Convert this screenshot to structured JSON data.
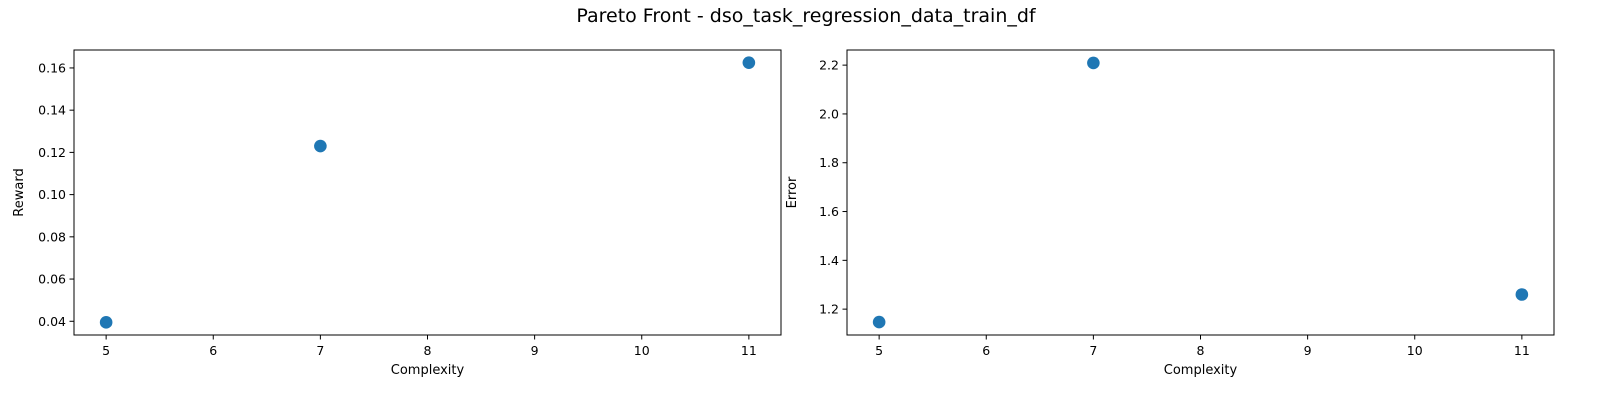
{
  "figure": {
    "title": "Pareto Front - dso_task_regression_data_train_df"
  },
  "chart_data": [
    {
      "type": "scatter",
      "xlabel": "Complexity",
      "ylabel": "Reward",
      "xlim": [
        4.7,
        11.3
      ],
      "ylim": [
        0.0335,
        0.1685
      ],
      "xticks": [
        5,
        6,
        7,
        8,
        9,
        10,
        11
      ],
      "xtick_labels": [
        "5",
        "6",
        "7",
        "8",
        "9",
        "10",
        "11"
      ],
      "yticks": [
        0.04,
        0.06,
        0.08,
        0.1,
        0.12,
        0.14,
        0.16
      ],
      "ytick_labels": [
        "0.04",
        "0.06",
        "0.08",
        "0.10",
        "0.12",
        "0.14",
        "0.16"
      ],
      "grid": false,
      "color": "#1f77b4",
      "points": [
        {
          "x": 5,
          "y": 0.0395
        },
        {
          "x": 7,
          "y": 0.123
        },
        {
          "x": 11,
          "y": 0.1625
        }
      ]
    },
    {
      "type": "scatter",
      "xlabel": "Complexity",
      "ylabel": "Error",
      "xlim": [
        4.7,
        11.3
      ],
      "ylim": [
        1.094,
        2.262
      ],
      "xticks": [
        5,
        6,
        7,
        8,
        9,
        10,
        11
      ],
      "xtick_labels": [
        "5",
        "6",
        "7",
        "8",
        "9",
        "10",
        "11"
      ],
      "yticks": [
        1.2,
        1.4,
        1.6,
        1.8,
        2.0,
        2.2
      ],
      "ytick_labels": [
        "1.2",
        "1.4",
        "1.6",
        "1.8",
        "2.0",
        "2.2"
      ],
      "grid": false,
      "color": "#1f77b4",
      "points": [
        {
          "x": 5,
          "y": 1.147
        },
        {
          "x": 7,
          "y": 2.209
        },
        {
          "x": 11,
          "y": 1.26
        }
      ]
    }
  ]
}
